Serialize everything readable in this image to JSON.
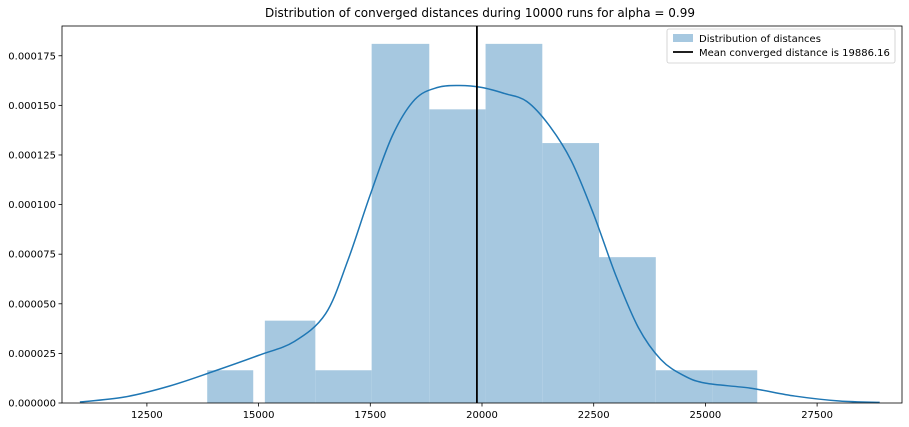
{
  "chart_data": {
    "type": "histogram",
    "title": "Distribution of converged distances during 10000 runs for alpha = 0.99",
    "xlabel": "",
    "ylabel": "",
    "xlim": [
      10600,
      29400
    ],
    "ylim": [
      0,
      0.00019
    ],
    "x_ticks": [
      12500,
      15000,
      17500,
      20000,
      22500,
      25000,
      27500
    ],
    "x_tick_labels": [
      "12500",
      "15000",
      "17500",
      "20000",
      "22500",
      "25000",
      "27500"
    ],
    "y_ticks": [
      0,
      2.5e-05,
      5e-05,
      7.5e-05,
      0.0001,
      0.000125,
      0.00015,
      0.000175
    ],
    "y_tick_labels": [
      "0.000000",
      "0.000025",
      "0.000050",
      "0.000075",
      "0.000100",
      "0.000125",
      "0.000150",
      "0.000175"
    ],
    "grid": false,
    "legend_position": "top-right",
    "colors": {
      "bars": "#a6c8e0",
      "kde": "#1f77b4",
      "mean_line": "#000000"
    },
    "histogram": {
      "name": "Distribution of distances",
      "bins": [
        {
          "x0": 13850,
          "x1": 14880,
          "density": 1.65e-05
        },
        {
          "x0": 15140,
          "x1": 16270,
          "density": 4.15e-05
        },
        {
          "x0": 16270,
          "x1": 17530,
          "density": 1.65e-05
        },
        {
          "x0": 17530,
          "x1": 18820,
          "density": 0.000181
        },
        {
          "x0": 18820,
          "x1": 20080,
          "density": 0.000148
        },
        {
          "x0": 20080,
          "x1": 21350,
          "density": 0.000181
        },
        {
          "x0": 21350,
          "x1": 22620,
          "density": 0.000131
        },
        {
          "x0": 22620,
          "x1": 23890,
          "density": 7.35e-05
        },
        {
          "x0": 23890,
          "x1": 25150,
          "density": 1.65e-05
        },
        {
          "x0": 25150,
          "x1": 26160,
          "density": 1.65e-05
        }
      ]
    },
    "kde": {
      "x": [
        11000,
        12000,
        13000,
        14000,
        15000,
        15800,
        16500,
        17000,
        17500,
        18000,
        18500,
        19000,
        19500,
        20000,
        20500,
        21000,
        21500,
        22000,
        22500,
        23000,
        23500,
        24000,
        24500,
        25000,
        26000,
        27000,
        28000,
        28900
      ],
      "y": [
        5e-07,
        3e-06,
        8.5e-06,
        1.6e-05,
        2.4e-05,
        3.1e-05,
        4.5e-05,
        7.2e-05,
        0.000105,
        0.000135,
        0.000153,
        0.000159,
        0.00016,
        0.000159,
        0.000156,
        0.000152,
        0.00014,
        0.000122,
        9.5e-05,
        6.4e-05,
        3.8e-05,
        2.2e-05,
        1.4e-05,
        1e-05,
        7.5e-06,
        3.5e-06,
        1e-06,
        3e-07
      ]
    },
    "mean_line": {
      "name": "Mean converged distance is 19886.16",
      "x": 19886.16
    }
  }
}
